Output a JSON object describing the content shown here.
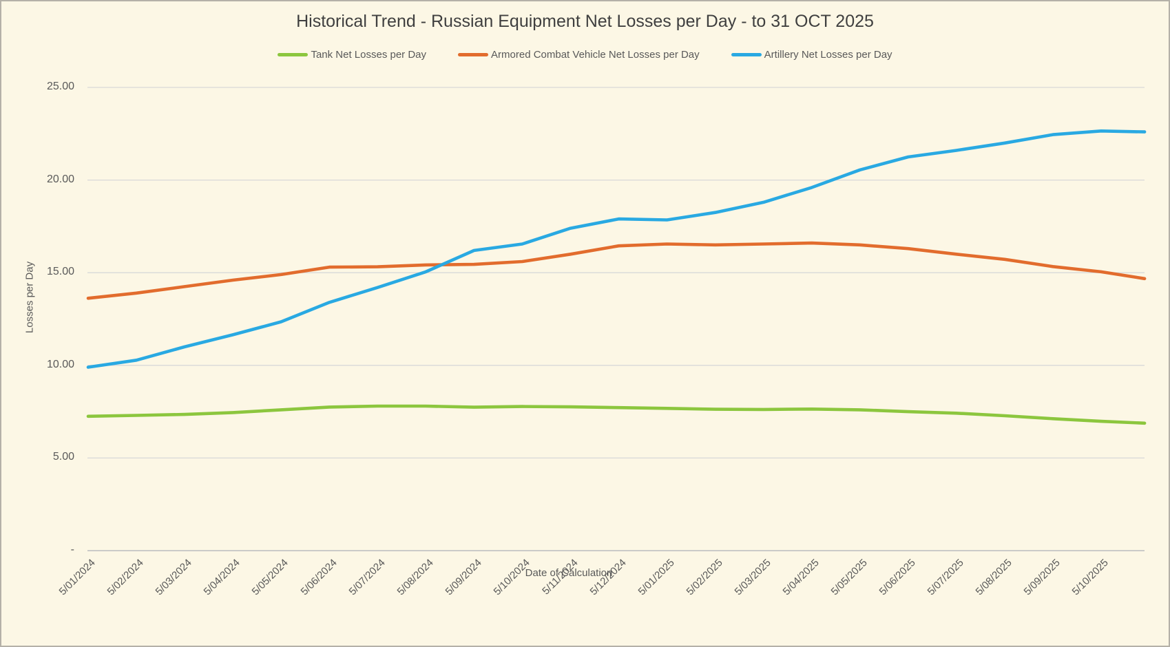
{
  "chart": {
    "title": "Historical Trend - Russian Equipment Net Losses per Day - to 31 OCT 2025",
    "x_axis": {
      "title": "Date of Calculation"
    },
    "y_axis": {
      "title": "Losses per Day",
      "ticks": [
        {
          "label": "25.00",
          "value": 25
        },
        {
          "label": "20.00",
          "value": 20
        },
        {
          "label": "15.00",
          "value": 15
        },
        {
          "label": "10.00",
          "value": 10
        },
        {
          "label": "5.00",
          "value": 5
        },
        {
          "label": "-",
          "value": 0
        }
      ]
    }
  },
  "chart_data": {
    "type": "line",
    "title": "Historical Trend - Russian Equipment Net Losses per Day - to 31 OCT 2025",
    "xlabel": "Date of Calculation",
    "ylabel": "Losses per Day",
    "ylim": [
      0,
      25
    ],
    "grid": "horizontal-only",
    "legend_position": "top",
    "categories": [
      "5/01/2024",
      "5/02/2024",
      "5/03/2024",
      "5/04/2024",
      "5/05/2024",
      "5/06/2024",
      "5/07/2024",
      "5/08/2024",
      "5/09/2024",
      "5/10/2024",
      "5/11/2024",
      "5/12/2024",
      "5/01/2025",
      "5/02/2025",
      "5/03/2025",
      "5/04/2025",
      "5/05/2025",
      "5/06/2025",
      "5/07/2025",
      "5/08/2025",
      "5/09/2025",
      "5/10/2025"
    ],
    "x_index": [
      0,
      1,
      2,
      3,
      4,
      5,
      6,
      7,
      8,
      9,
      10,
      11,
      12,
      13,
      14,
      15,
      16,
      17,
      18,
      19,
      20,
      21,
      21.9
    ],
    "x_note": "series extend past the last labeled tick (5/10/2025) to 31 OCT 2025",
    "series": [
      {
        "name": "Tank Net Losses per Day",
        "short": "tank",
        "color": "#8CC63E",
        "values": [
          7.25,
          7.3,
          7.35,
          7.45,
          7.6,
          7.75,
          7.8,
          7.8,
          7.74,
          7.78,
          7.76,
          7.72,
          7.68,
          7.63,
          7.62,
          7.64,
          7.6,
          7.5,
          7.42,
          7.28,
          7.12,
          6.98,
          6.88
        ]
      },
      {
        "name": "Armored Combat Vehicle Net Losses per Day",
        "short": "armored-combat-vehicle",
        "color": "#E26C2D",
        "values": [
          13.62,
          13.9,
          14.25,
          14.6,
          14.9,
          15.3,
          15.32,
          15.42,
          15.45,
          15.6,
          16.0,
          16.45,
          16.55,
          16.5,
          16.55,
          16.6,
          16.5,
          16.3,
          16.0,
          15.72,
          15.33,
          15.05,
          14.68
        ]
      },
      {
        "name": "Artillery Net Losses per Day",
        "short": "artillery",
        "color": "#29A9E2",
        "values": [
          9.9,
          10.28,
          11.0,
          11.65,
          12.35,
          13.4,
          14.2,
          15.05,
          16.2,
          16.55,
          17.4,
          17.9,
          17.85,
          18.25,
          18.8,
          19.6,
          20.55,
          21.25,
          21.6,
          22.0,
          22.45,
          22.65,
          22.6
        ]
      }
    ]
  },
  "colors": {
    "background": "#FCF7E5",
    "border": "#B5B1A8",
    "gridline": "#D8D8D8",
    "axis_line": "#C4C4C4",
    "text": "#595959",
    "title_text": "#3F3F3F"
  }
}
